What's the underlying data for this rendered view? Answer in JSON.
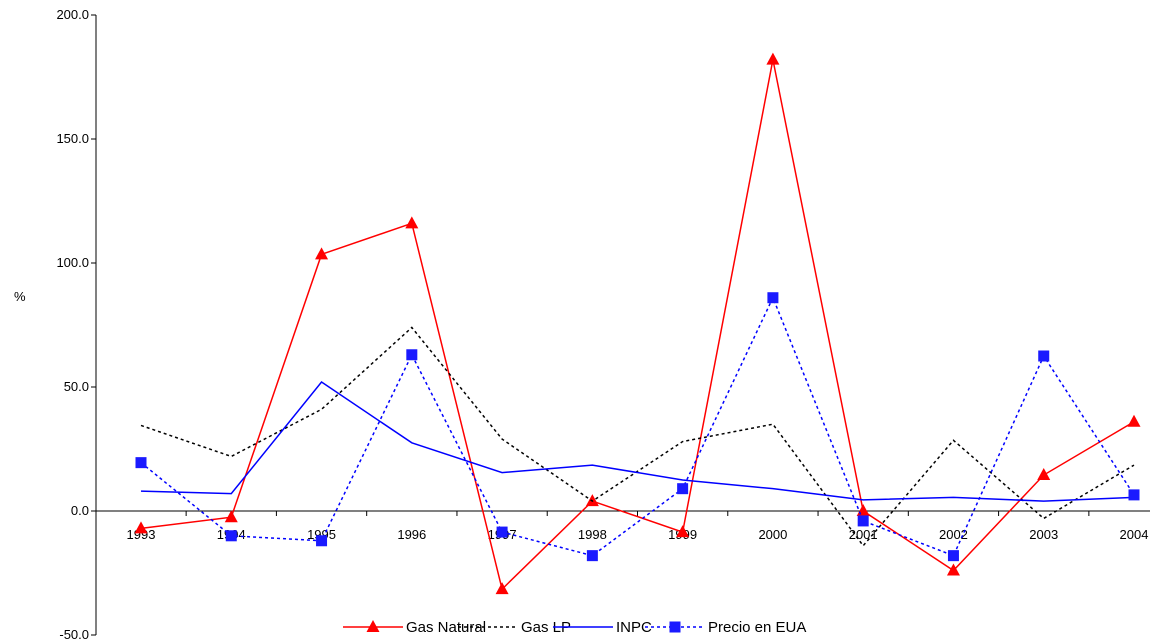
{
  "chart_data": {
    "type": "line",
    "title": "",
    "xlabel": "",
    "ylabel": "%",
    "ylim": [
      -50,
      200
    ],
    "yticks": [
      "-50.0",
      "0.0",
      "50.0",
      "100.0",
      "150.0",
      "200.0"
    ],
    "yticks_values": [
      -50,
      0,
      50,
      100,
      150,
      200
    ],
    "categories": [
      "1993",
      "1994",
      "1995",
      "1996",
      "1997",
      "1998",
      "1999",
      "2000",
      "2001",
      "2002",
      "2003",
      "2004"
    ],
    "legend_position": "bottom",
    "grid": false,
    "series": [
      {
        "name": "Gas Natural",
        "color": "#ff0000",
        "style": "solid",
        "marker": "triangle",
        "values": [
          -7,
          -2.5,
          103.5,
          116,
          -31.5,
          4,
          -8.5,
          182,
          0,
          -24,
          14.5,
          36
        ]
      },
      {
        "name": "Gas LP",
        "color": "#000000",
        "style": "dotted",
        "marker": "none",
        "values": [
          34.5,
          22,
          41,
          74,
          29,
          4,
          28,
          35,
          -14,
          28.5,
          -3,
          18.5
        ]
      },
      {
        "name": "INPC",
        "color": "#0000ff",
        "style": "solid",
        "marker": "none",
        "values": [
          8,
          7,
          52,
          27.5,
          15.5,
          18.5,
          12.5,
          9,
          4.5,
          5.5,
          4,
          5.5
        ]
      },
      {
        "name": "Precio en EUA",
        "color": "#0000ff",
        "style": "dotted",
        "marker": "square",
        "marker_color": "#1a1aff",
        "values": [
          19.5,
          -10,
          -12,
          63,
          -8.5,
          -18,
          9,
          86,
          -4,
          -18,
          62.5,
          6.5
        ]
      }
    ]
  }
}
